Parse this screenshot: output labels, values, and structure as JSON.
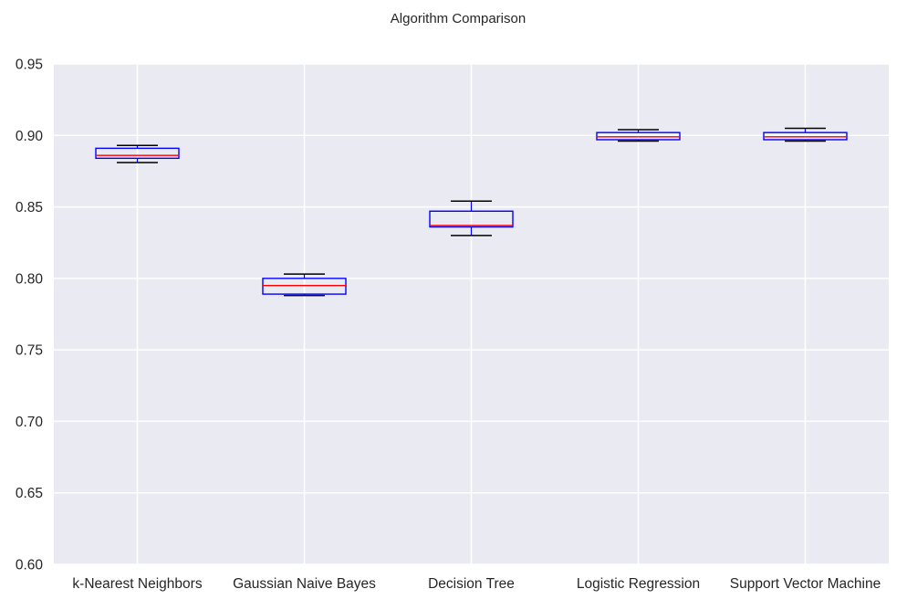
{
  "chart_data": {
    "type": "box",
    "title": "Algorithm Comparison",
    "xlabel": "",
    "ylabel": "",
    "ylim": [
      0.6,
      0.95
    ],
    "yticks": [
      "0.60",
      "0.65",
      "0.70",
      "0.75",
      "0.80",
      "0.85",
      "0.90",
      "0.95"
    ],
    "grid": true,
    "colors": {
      "plot_background": "#eaeaf2",
      "grid": "#ffffff",
      "box": "#0000ff",
      "median": "#ff0000",
      "whisker_cap": "#000000"
    },
    "categories": [
      "k-Nearest Neighbors",
      "Gaussian Naive Bayes",
      "Decision Tree",
      "Logistic Regression",
      "Support Vector Machine"
    ],
    "boxes": [
      {
        "whislo": 0.881,
        "q1": 0.884,
        "med": 0.886,
        "q3": 0.891,
        "whishi": 0.893
      },
      {
        "whislo": 0.788,
        "q1": 0.789,
        "med": 0.795,
        "q3": 0.8,
        "whishi": 0.803
      },
      {
        "whislo": 0.83,
        "q1": 0.836,
        "med": 0.837,
        "q3": 0.847,
        "whishi": 0.854
      },
      {
        "whislo": 0.896,
        "q1": 0.897,
        "med": 0.899,
        "q3": 0.902,
        "whishi": 0.904
      },
      {
        "whislo": 0.896,
        "q1": 0.897,
        "med": 0.899,
        "q3": 0.902,
        "whishi": 0.905
      }
    ]
  }
}
